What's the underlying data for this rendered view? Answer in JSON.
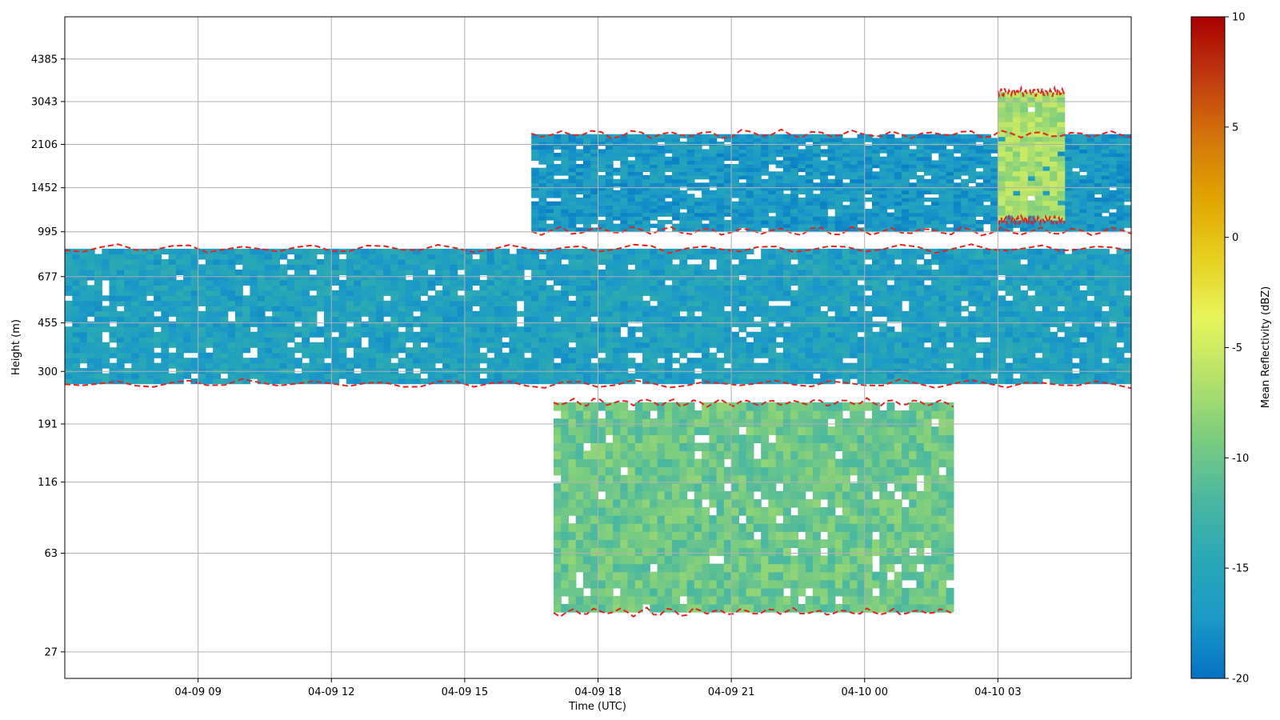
{
  "chart_data": {
    "type": "heatmap",
    "title": "",
    "xlabel": "Time (UTC)",
    "ylabel": "Height (m)",
    "x_range": [
      "04-09 06:00",
      "04-10 06:00"
    ],
    "xticks": [
      "04-09 09",
      "04-09 12",
      "04-09 15",
      "04-09 18",
      "04-09 21",
      "04-10 00",
      "04-10 03"
    ],
    "yscale": "log",
    "yticks": [
      27,
      63,
      116,
      191,
      300,
      455,
      677,
      995,
      1452,
      2106,
      3043,
      4385
    ],
    "grid": true,
    "colorbar": {
      "label": "Mean Reflectivity (dBZ)",
      "min": -20,
      "max": 10,
      "ticks": [
        10,
        5,
        0,
        -5,
        -10,
        -15,
        -20
      ],
      "colors": [
        "#0571c4",
        "#1a9ac7",
        "#2aa8b5",
        "#4bb8a0",
        "#7ccd7e",
        "#b5e26a",
        "#e8f55a",
        "#e6cf1f",
        "#e0a300",
        "#d4750a",
        "#c03a10",
        "#a80000"
      ]
    },
    "contour": {
      "style": "dashed",
      "color": "#e8211c"
    },
    "approx_regions": [
      {
        "desc": "cloud layer",
        "time": [
          "04-09 06:00",
          "04-10 06:00"
        ],
        "height_m": [
          270,
          860
        ],
        "dBZ": -16
      },
      {
        "desc": "upper layer",
        "time": [
          "04-09 16:30",
          "04-10 06:00"
        ],
        "height_m": [
          1000,
          2300
        ],
        "dBZ": -17
      },
      {
        "desc": "convective cell",
        "time": [
          "04-10 03:00",
          "04-10 04:30"
        ],
        "height_m": [
          1100,
          3300
        ],
        "dBZ": -7
      },
      {
        "desc": "near-surface layer",
        "time": [
          "04-09 17:00",
          "04-10 02:00"
        ],
        "height_m": [
          38,
          230
        ],
        "dBZ": -10
      }
    ]
  }
}
